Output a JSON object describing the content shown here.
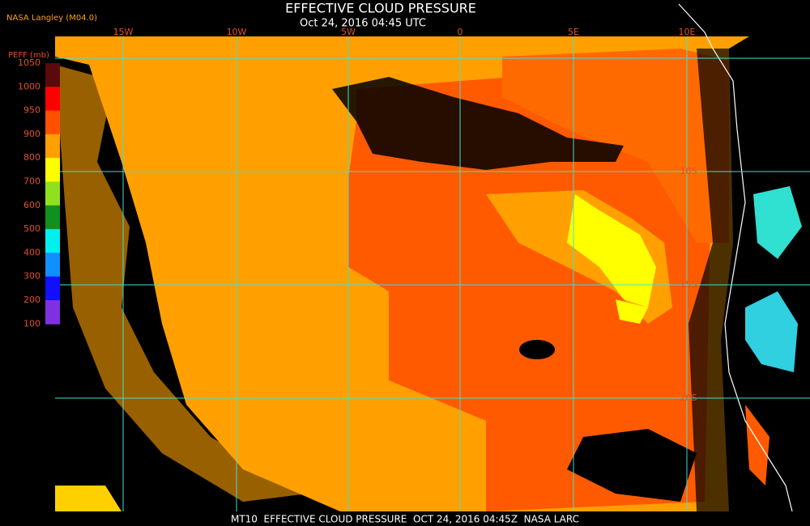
{
  "header": {
    "title": "EFFECTIVE CLOUD PRESSURE",
    "subtitle": "Oct 24, 2016 04:45 UTC",
    "source": "NASA Langley (M04.0)"
  },
  "map": {
    "lon_labels": [
      "15W",
      "10W",
      "5W",
      "0",
      "5E",
      "10E"
    ],
    "lat_labels": [
      "10S",
      "15S",
      "20S"
    ]
  },
  "colorbar": {
    "label": "PEFF (mb)",
    "ticks": [
      1050,
      1000,
      950,
      900,
      800,
      700,
      600,
      500,
      400,
      300,
      200,
      100
    ]
  },
  "footer": {
    "text": "MT10  EFFECTIVE CLOUD PRESSURE  OCT 24, 2016 04:45Z  NASA LARC"
  }
}
